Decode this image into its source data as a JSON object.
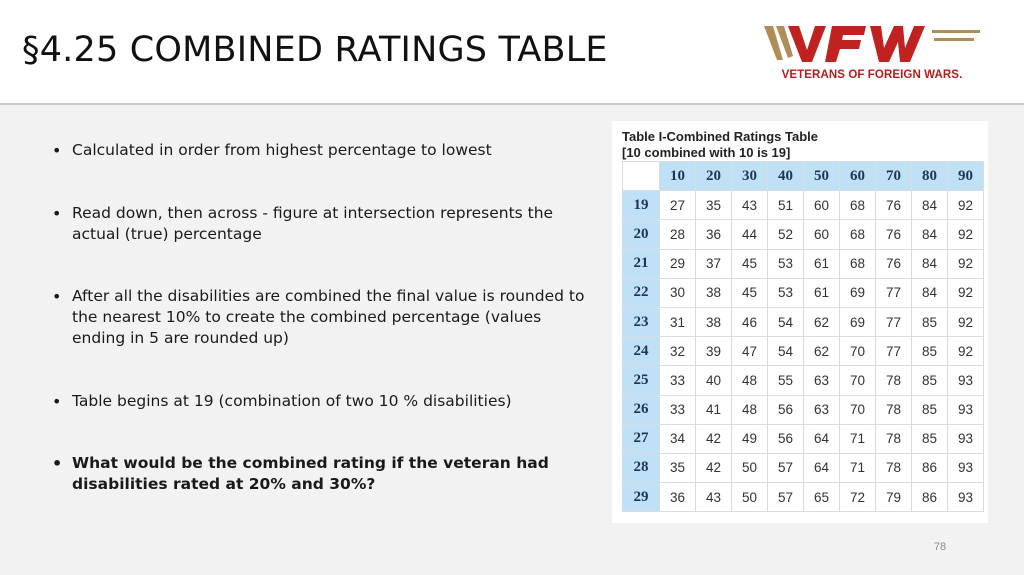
{
  "slide": {
    "title": "§4.25 COMBINED RATINGS TABLE",
    "page_number": "78"
  },
  "logo": {
    "text": "VFW",
    "subtitle": "VETERANS OF FOREIGN WARS.",
    "colors": {
      "stripes": "#b08d57",
      "letters": "#c0231f",
      "subtitle": "#b71c1c"
    }
  },
  "bullets": [
    {
      "text": "Calculated in order from highest percentage to lowest",
      "bold": false
    },
    {
      "text": "Read down, then across - figure at intersection represents the actual (true) percentage",
      "bold": false
    },
    {
      "text": "After all the disabilities are combined the final value is rounded to the nearest 10% to create the combined percentage (values ending in 5 are rounded up)",
      "bold": false
    },
    {
      "text": "Table begins at 19 (combination of two 10 % disabilities)",
      "bold": false
    },
    {
      "text": "What would be the combined rating if the veteran had disabilities rated at 20% and 30%?",
      "bold": true
    }
  ],
  "ratings_table": {
    "caption_line1": "Table I-Combined Ratings Table",
    "caption_line2": "[10 combined with 10 is 19]",
    "columns": [
      "10",
      "20",
      "30",
      "40",
      "50",
      "60",
      "70",
      "80",
      "90"
    ],
    "rows": [
      {
        "head": "19",
        "cells": [
          "27",
          "35",
          "43",
          "51",
          "60",
          "68",
          "76",
          "84",
          "92"
        ]
      },
      {
        "head": "20",
        "cells": [
          "28",
          "36",
          "44",
          "52",
          "60",
          "68",
          "76",
          "84",
          "92"
        ]
      },
      {
        "head": "21",
        "cells": [
          "29",
          "37",
          "45",
          "53",
          "61",
          "68",
          "76",
          "84",
          "92"
        ]
      },
      {
        "head": "22",
        "cells": [
          "30",
          "38",
          "45",
          "53",
          "61",
          "69",
          "77",
          "84",
          "92"
        ]
      },
      {
        "head": "23",
        "cells": [
          "31",
          "38",
          "46",
          "54",
          "62",
          "69",
          "77",
          "85",
          "92"
        ]
      },
      {
        "head": "24",
        "cells": [
          "32",
          "39",
          "47",
          "54",
          "62",
          "70",
          "77",
          "85",
          "92"
        ]
      },
      {
        "head": "25",
        "cells": [
          "33",
          "40",
          "48",
          "55",
          "63",
          "70",
          "78",
          "85",
          "93"
        ]
      },
      {
        "head": "26",
        "cells": [
          "33",
          "41",
          "48",
          "56",
          "63",
          "70",
          "78",
          "85",
          "93"
        ]
      },
      {
        "head": "27",
        "cells": [
          "34",
          "42",
          "49",
          "56",
          "64",
          "71",
          "78",
          "85",
          "93"
        ]
      },
      {
        "head": "28",
        "cells": [
          "35",
          "42",
          "50",
          "57",
          "64",
          "71",
          "78",
          "86",
          "93"
        ]
      },
      {
        "head": "29",
        "cells": [
          "36",
          "43",
          "50",
          "57",
          "65",
          "72",
          "79",
          "86",
          "93"
        ]
      }
    ],
    "header_color": "#bfe0f5"
  }
}
